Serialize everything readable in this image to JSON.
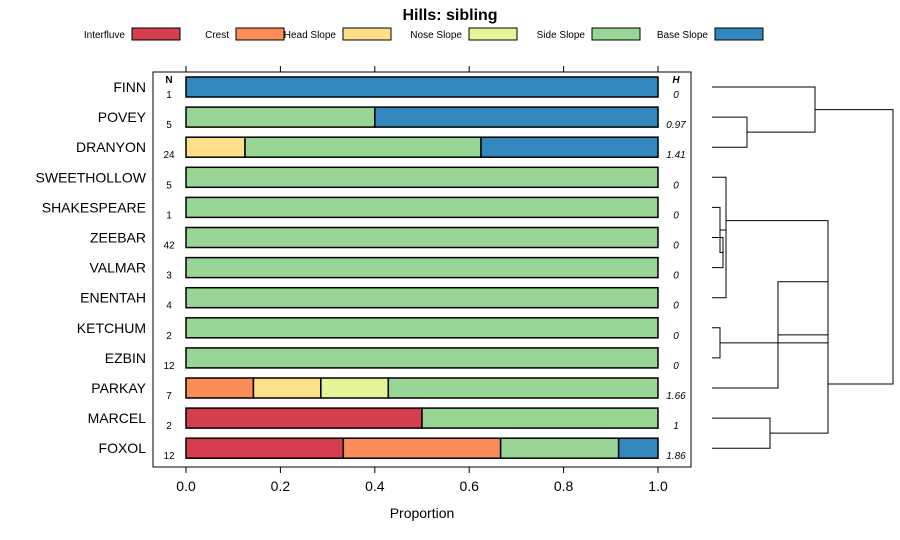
{
  "chart_data": {
    "type": "bar",
    "orientation": "horizontal",
    "stacked": true,
    "title": "Hills: sibling",
    "xlabel": "Proportion",
    "xlim": [
      0,
      1
    ],
    "x_ticks": [
      "0.0",
      "0.2",
      "0.4",
      "0.6",
      "0.8",
      "1.0"
    ],
    "n_header": "N",
    "h_header": "H",
    "legend_position": "top",
    "legend": [
      {
        "name": "Interfluve",
        "color": "#D53E4F"
      },
      {
        "name": "Crest",
        "color": "#FC8D59"
      },
      {
        "name": "Head Slope",
        "color": "#FEE08B"
      },
      {
        "name": "Nose Slope",
        "color": "#E6F598"
      },
      {
        "name": "Side Slope",
        "color": "#99D594"
      },
      {
        "name": "Base Slope",
        "color": "#3288BD"
      }
    ],
    "rows": [
      {
        "name": "FINN",
        "n": "1",
        "h": "0",
        "values": [
          0,
          0,
          0,
          0,
          0,
          1
        ]
      },
      {
        "name": "POVEY",
        "n": "5",
        "h": "0.97",
        "values": [
          0,
          0,
          0,
          0,
          0.4,
          0.6
        ]
      },
      {
        "name": "DRANYON",
        "n": "24",
        "h": "1.41",
        "values": [
          0,
          0,
          0.125,
          0,
          0.5,
          0.375
        ]
      },
      {
        "name": "SWEETHOLLOW",
        "n": "5",
        "h": "0",
        "values": [
          0,
          0,
          0,
          0,
          1,
          0
        ]
      },
      {
        "name": "SHAKESPEARE",
        "n": "1",
        "h": "0",
        "values": [
          0,
          0,
          0,
          0,
          1,
          0
        ]
      },
      {
        "name": "ZEEBAR",
        "n": "42",
        "h": "0",
        "values": [
          0,
          0,
          0,
          0,
          1,
          0
        ]
      },
      {
        "name": "VALMAR",
        "n": "3",
        "h": "0",
        "values": [
          0,
          0,
          0,
          0,
          1,
          0
        ]
      },
      {
        "name": "ENENTAH",
        "n": "4",
        "h": "0",
        "values": [
          0,
          0,
          0,
          0,
          1,
          0
        ]
      },
      {
        "name": "KETCHUM",
        "n": "2",
        "h": "0",
        "values": [
          0,
          0,
          0,
          0,
          1,
          0
        ]
      },
      {
        "name": "EZBIN",
        "n": "12",
        "h": "0",
        "values": [
          0,
          0,
          0,
          0,
          1,
          0
        ]
      },
      {
        "name": "PARKAY",
        "n": "7",
        "h": "1.66",
        "values": [
          0,
          0.1429,
          0.1428,
          0.1429,
          0.5714,
          0
        ]
      },
      {
        "name": "MARCEL",
        "n": "2",
        "h": "1",
        "values": [
          0.5,
          0,
          0,
          0,
          0.5,
          0
        ]
      },
      {
        "name": "FOXOL",
        "n": "12",
        "h": "1.86",
        "values": [
          0.3333,
          0.3333,
          0,
          0,
          0.25,
          0.0834
        ]
      }
    ],
    "dendrogram_links": [
      [
        1,
        2
      ],
      [
        8,
        9
      ],
      [
        5,
        6
      ],
      [
        4,
        [
          5,
          6
        ]
      ],
      [
        [
          4,
          [
            5,
            6
          ]
        ],
        7
      ],
      [
        3,
        [
          [
            4,
            [
              5,
              6
            ]
          ],
          7
        ]
      ],
      [
        [
          3,
          [
            [
              4,
              [
                5,
                6
              ]
            ],
            7
          ]
        ],
        [
          8,
          9
        ]
      ],
      [
        [
          [
            3,
            [
              [
                4,
                [
                  5,
                  6
                ]
              ],
              7
            ]
          ],
          [
            8,
            9
          ]
        ],
        10
      ],
      [
        11,
        12
      ],
      [
        0,
        [
          1,
          2
        ]
      ]
    ]
  }
}
